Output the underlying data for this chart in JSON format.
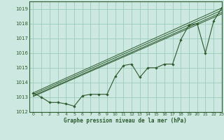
{
  "title": "Graphe pression niveau de la mer (hPa)",
  "bg_color": "#cce8e0",
  "grid_color": "#99ccbb",
  "line_color": "#2d5a2d",
  "ylim": [
    1012,
    1019.5
  ],
  "xlim": [
    -0.5,
    23
  ],
  "yticks": [
    1012,
    1013,
    1014,
    1015,
    1016,
    1017,
    1018,
    1019
  ],
  "xticks": [
    0,
    1,
    2,
    3,
    4,
    5,
    6,
    7,
    8,
    9,
    10,
    11,
    12,
    13,
    14,
    15,
    16,
    17,
    18,
    19,
    20,
    21,
    22,
    23
  ],
  "x": [
    0,
    1,
    2,
    3,
    4,
    5,
    6,
    7,
    8,
    9,
    10,
    11,
    12,
    13,
    14,
    15,
    16,
    17,
    18,
    19,
    20,
    21,
    22,
    23
  ],
  "line1": [
    1013.3,
    1013.0,
    1012.65,
    1012.65,
    1012.55,
    1012.4,
    1013.1,
    1013.2,
    1013.2,
    1013.2,
    1014.4,
    1015.15,
    1015.25,
    1014.35,
    1015.0,
    1015.0,
    1015.25,
    1015.25,
    1016.9,
    1017.9,
    1018.0,
    1016.0,
    1018.15,
    1019.05
  ],
  "trend1_x": [
    0,
    23
  ],
  "trend1_y": [
    1013.3,
    1019.05
  ],
  "trend2_x": [
    0,
    23
  ],
  "trend2_y": [
    1013.2,
    1018.9
  ],
  "trend3_x": [
    0,
    23
  ],
  "trend3_y": [
    1013.1,
    1018.75
  ],
  "trend4_x": [
    0,
    23
  ],
  "trend4_y": [
    1013.05,
    1018.65
  ]
}
